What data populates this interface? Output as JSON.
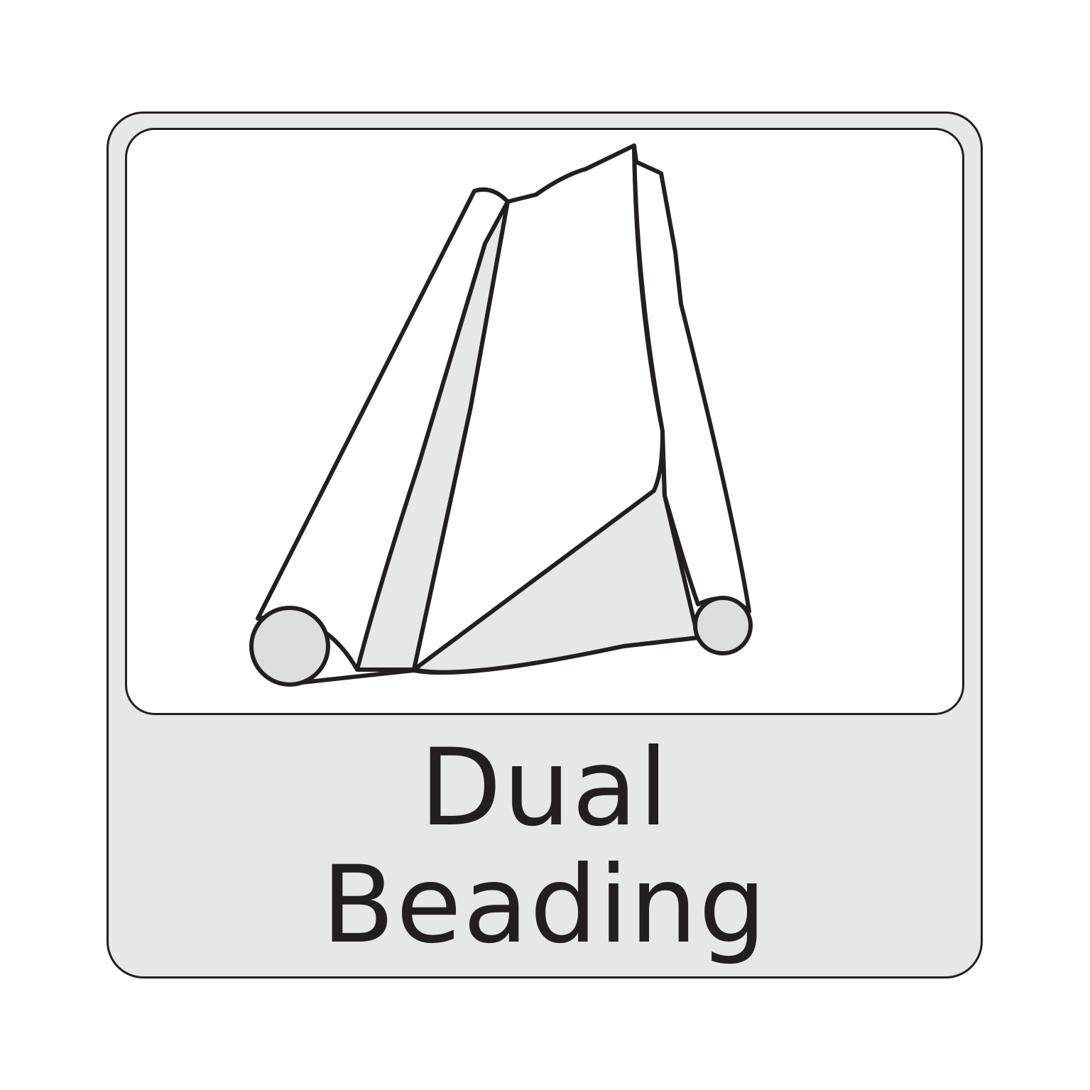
{
  "icon": {
    "name": "dual-beading-icon",
    "lines": [
      "Dual",
      "Beading"
    ]
  },
  "colors": {
    "stroke": "#231f20",
    "badge_fill": "#e6e7e8",
    "roll_fill": "#dcdddf",
    "panel_fill": "#ffffff"
  }
}
